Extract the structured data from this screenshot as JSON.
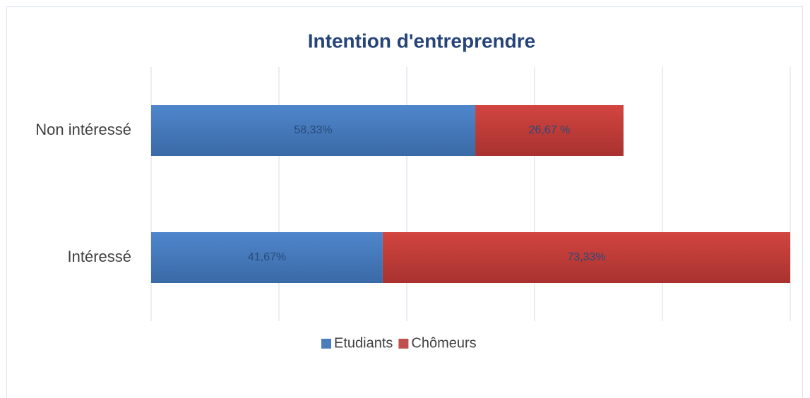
{
  "chart_data": {
    "type": "stacked_barh",
    "title": "Intention d'entreprendre",
    "categories": [
      "Non intéressé",
      "Intéressé"
    ],
    "series": [
      {
        "name": "Etudiants",
        "color": "#4a7ebb",
        "values": [
          58.33,
          41.67
        ],
        "value_labels": [
          "58,33%",
          "41,67%"
        ]
      },
      {
        "name": "Chômeurs",
        "color": "#c0504d",
        "values": [
          26.67,
          73.33
        ],
        "value_labels": [
          "26,67 %",
          "73,33%"
        ]
      }
    ],
    "xlim": [
      0,
      115
    ],
    "xticks": [
      0,
      23,
      46,
      69,
      92,
      115
    ],
    "grid": true,
    "legend": "bottom"
  }
}
